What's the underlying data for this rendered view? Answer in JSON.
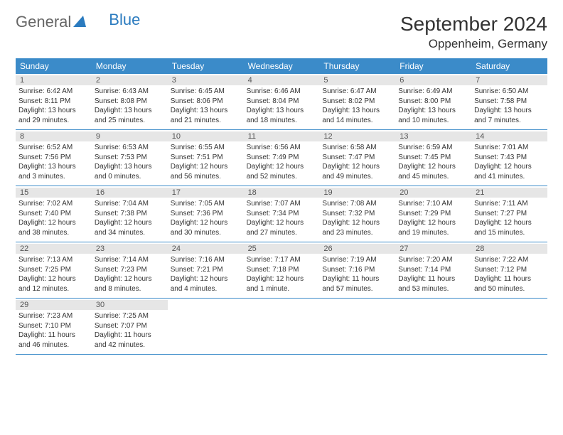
{
  "logo": {
    "part1": "General",
    "part2": "Blue"
  },
  "title": "September 2024",
  "location": "Oppenheim, Germany",
  "dow": [
    "Sunday",
    "Monday",
    "Tuesday",
    "Wednesday",
    "Thursday",
    "Friday",
    "Saturday"
  ],
  "colors": {
    "header_bg": "#3b8bc9",
    "header_fg": "#ffffff",
    "daynum_bg": "#e6e6e6",
    "week_border": "#3b8bc9",
    "logo_blue": "#2b7bbf"
  },
  "typography": {
    "title_fontsize": 28,
    "location_fontsize": 17,
    "dow_fontsize": 12,
    "cell_fontsize": 10
  },
  "days": [
    {
      "n": "1",
      "sr": "Sunrise: 6:42 AM",
      "ss": "Sunset: 8:11 PM",
      "d1": "Daylight: 13 hours",
      "d2": "and 29 minutes."
    },
    {
      "n": "2",
      "sr": "Sunrise: 6:43 AM",
      "ss": "Sunset: 8:08 PM",
      "d1": "Daylight: 13 hours",
      "d2": "and 25 minutes."
    },
    {
      "n": "3",
      "sr": "Sunrise: 6:45 AM",
      "ss": "Sunset: 8:06 PM",
      "d1": "Daylight: 13 hours",
      "d2": "and 21 minutes."
    },
    {
      "n": "4",
      "sr": "Sunrise: 6:46 AM",
      "ss": "Sunset: 8:04 PM",
      "d1": "Daylight: 13 hours",
      "d2": "and 18 minutes."
    },
    {
      "n": "5",
      "sr": "Sunrise: 6:47 AM",
      "ss": "Sunset: 8:02 PM",
      "d1": "Daylight: 13 hours",
      "d2": "and 14 minutes."
    },
    {
      "n": "6",
      "sr": "Sunrise: 6:49 AM",
      "ss": "Sunset: 8:00 PM",
      "d1": "Daylight: 13 hours",
      "d2": "and 10 minutes."
    },
    {
      "n": "7",
      "sr": "Sunrise: 6:50 AM",
      "ss": "Sunset: 7:58 PM",
      "d1": "Daylight: 13 hours",
      "d2": "and 7 minutes."
    },
    {
      "n": "8",
      "sr": "Sunrise: 6:52 AM",
      "ss": "Sunset: 7:56 PM",
      "d1": "Daylight: 13 hours",
      "d2": "and 3 minutes."
    },
    {
      "n": "9",
      "sr": "Sunrise: 6:53 AM",
      "ss": "Sunset: 7:53 PM",
      "d1": "Daylight: 13 hours",
      "d2": "and 0 minutes."
    },
    {
      "n": "10",
      "sr": "Sunrise: 6:55 AM",
      "ss": "Sunset: 7:51 PM",
      "d1": "Daylight: 12 hours",
      "d2": "and 56 minutes."
    },
    {
      "n": "11",
      "sr": "Sunrise: 6:56 AM",
      "ss": "Sunset: 7:49 PM",
      "d1": "Daylight: 12 hours",
      "d2": "and 52 minutes."
    },
    {
      "n": "12",
      "sr": "Sunrise: 6:58 AM",
      "ss": "Sunset: 7:47 PM",
      "d1": "Daylight: 12 hours",
      "d2": "and 49 minutes."
    },
    {
      "n": "13",
      "sr": "Sunrise: 6:59 AM",
      "ss": "Sunset: 7:45 PM",
      "d1": "Daylight: 12 hours",
      "d2": "and 45 minutes."
    },
    {
      "n": "14",
      "sr": "Sunrise: 7:01 AM",
      "ss": "Sunset: 7:43 PM",
      "d1": "Daylight: 12 hours",
      "d2": "and 41 minutes."
    },
    {
      "n": "15",
      "sr": "Sunrise: 7:02 AM",
      "ss": "Sunset: 7:40 PM",
      "d1": "Daylight: 12 hours",
      "d2": "and 38 minutes."
    },
    {
      "n": "16",
      "sr": "Sunrise: 7:04 AM",
      "ss": "Sunset: 7:38 PM",
      "d1": "Daylight: 12 hours",
      "d2": "and 34 minutes."
    },
    {
      "n": "17",
      "sr": "Sunrise: 7:05 AM",
      "ss": "Sunset: 7:36 PM",
      "d1": "Daylight: 12 hours",
      "d2": "and 30 minutes."
    },
    {
      "n": "18",
      "sr": "Sunrise: 7:07 AM",
      "ss": "Sunset: 7:34 PM",
      "d1": "Daylight: 12 hours",
      "d2": "and 27 minutes."
    },
    {
      "n": "19",
      "sr": "Sunrise: 7:08 AM",
      "ss": "Sunset: 7:32 PM",
      "d1": "Daylight: 12 hours",
      "d2": "and 23 minutes."
    },
    {
      "n": "20",
      "sr": "Sunrise: 7:10 AM",
      "ss": "Sunset: 7:29 PM",
      "d1": "Daylight: 12 hours",
      "d2": "and 19 minutes."
    },
    {
      "n": "21",
      "sr": "Sunrise: 7:11 AM",
      "ss": "Sunset: 7:27 PM",
      "d1": "Daylight: 12 hours",
      "d2": "and 15 minutes."
    },
    {
      "n": "22",
      "sr": "Sunrise: 7:13 AM",
      "ss": "Sunset: 7:25 PM",
      "d1": "Daylight: 12 hours",
      "d2": "and 12 minutes."
    },
    {
      "n": "23",
      "sr": "Sunrise: 7:14 AM",
      "ss": "Sunset: 7:23 PM",
      "d1": "Daylight: 12 hours",
      "d2": "and 8 minutes."
    },
    {
      "n": "24",
      "sr": "Sunrise: 7:16 AM",
      "ss": "Sunset: 7:21 PM",
      "d1": "Daylight: 12 hours",
      "d2": "and 4 minutes."
    },
    {
      "n": "25",
      "sr": "Sunrise: 7:17 AM",
      "ss": "Sunset: 7:18 PM",
      "d1": "Daylight: 12 hours",
      "d2": "and 1 minute."
    },
    {
      "n": "26",
      "sr": "Sunrise: 7:19 AM",
      "ss": "Sunset: 7:16 PM",
      "d1": "Daylight: 11 hours",
      "d2": "and 57 minutes."
    },
    {
      "n": "27",
      "sr": "Sunrise: 7:20 AM",
      "ss": "Sunset: 7:14 PM",
      "d1": "Daylight: 11 hours",
      "d2": "and 53 minutes."
    },
    {
      "n": "28",
      "sr": "Sunrise: 7:22 AM",
      "ss": "Sunset: 7:12 PM",
      "d1": "Daylight: 11 hours",
      "d2": "and 50 minutes."
    },
    {
      "n": "29",
      "sr": "Sunrise: 7:23 AM",
      "ss": "Sunset: 7:10 PM",
      "d1": "Daylight: 11 hours",
      "d2": "and 46 minutes."
    },
    {
      "n": "30",
      "sr": "Sunrise: 7:25 AM",
      "ss": "Sunset: 7:07 PM",
      "d1": "Daylight: 11 hours",
      "d2": "and 42 minutes."
    }
  ],
  "layout": {
    "start_offset": 0,
    "total_cells": 35
  }
}
